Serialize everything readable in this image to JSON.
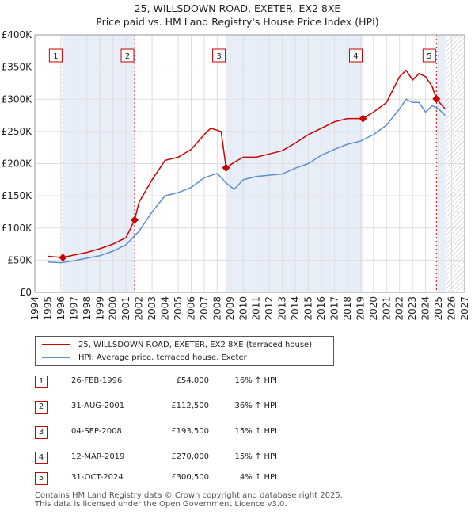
{
  "title_line1": "25, WILLSDOWN ROAD, EXETER, EX2 8XE",
  "title_line2": "Price paid vs. HM Land Registry's House Price Index (HPI)",
  "colors": {
    "property": "#cc0000",
    "hpi": "#5b8fcc",
    "shade": "#e8eef8",
    "marker": "#cc0000"
  },
  "chart_data": {
    "type": "line",
    "title": "25, WILLSDOWN ROAD, EXETER, EX2 8XE",
    "subtitle": "Price paid vs. HM Land Registry's House Price Index (HPI)",
    "xlabel": "",
    "ylabel": "",
    "xlim": [
      1994,
      2027
    ],
    "ylim": [
      0,
      400000
    ],
    "x_ticks": [
      1994,
      1995,
      1996,
      1997,
      1998,
      1999,
      2000,
      2001,
      2002,
      2003,
      2004,
      2005,
      2006,
      2007,
      2008,
      2009,
      2010,
      2011,
      2012,
      2013,
      2014,
      2015,
      2016,
      2017,
      2018,
      2019,
      2020,
      2021,
      2022,
      2023,
      2024,
      2025,
      2026,
      2027
    ],
    "y_ticks": [
      {
        "value": 0,
        "label": "£0"
      },
      {
        "value": 50000,
        "label": "£50K"
      },
      {
        "value": 100000,
        "label": "£100K"
      },
      {
        "value": 150000,
        "label": "£150K"
      },
      {
        "value": 200000,
        "label": "£200K"
      },
      {
        "value": 250000,
        "label": "£250K"
      },
      {
        "value": 300000,
        "label": "£300K"
      },
      {
        "value": 350000,
        "label": "£350K"
      },
      {
        "value": 400000,
        "label": "£400K"
      }
    ],
    "shaded_periods": [
      [
        1996.15,
        2001.66
      ],
      [
        2008.68,
        2019.19
      ],
      [
        2024.83,
        2025.5
      ]
    ],
    "hatched_after": 2025.5,
    "series": [
      {
        "name": "25, WILLSDOWN ROAD, EXETER, EX2 8XE (terraced house)",
        "color": "#cc0000",
        "x": [
          1995.0,
          1996.15,
          1997,
          1998,
          1999,
          2000,
          2001,
          2001.66,
          2002,
          2003,
          2004,
          2005,
          2006,
          2007,
          2007.5,
          2008.3,
          2008.68,
          2009.3,
          2010,
          2011,
          2012,
          2013,
          2014,
          2015,
          2016,
          2017,
          2018,
          2019.19,
          2020,
          2021,
          2022,
          2022.5,
          2023,
          2023.5,
          2024,
          2024.5,
          2024.83,
          2025.5
        ],
        "values": [
          56000,
          54000,
          58000,
          62000,
          68000,
          75000,
          85000,
          112500,
          140000,
          175000,
          205000,
          210000,
          222000,
          245000,
          255000,
          250000,
          193500,
          202000,
          210000,
          210000,
          215000,
          220000,
          232000,
          245000,
          255000,
          265000,
          270000,
          270000,
          280000,
          295000,
          335000,
          345000,
          330000,
          340000,
          335000,
          320000,
          300500,
          285000
        ]
      },
      {
        "name": "HPI: Average price, terraced house, Exeter",
        "color": "#5b8fcc",
        "x": [
          1995,
          1996,
          1997,
          1998,
          1999,
          2000,
          2001,
          2002,
          2003,
          2004,
          2005,
          2006,
          2007,
          2008,
          2008.68,
          2009.3,
          2010,
          2011,
          2012,
          2013,
          2014,
          2015,
          2016,
          2017,
          2018,
          2019,
          2020,
          2021,
          2022,
          2022.5,
          2023,
          2023.5,
          2024,
          2024.5,
          2025,
          2025.5
        ],
        "values": [
          47000,
          46000,
          49000,
          53000,
          57000,
          64000,
          74000,
          95000,
          125000,
          150000,
          155000,
          163000,
          178000,
          185000,
          170000,
          160000,
          175000,
          180000,
          182000,
          184000,
          193000,
          200000,
          213000,
          222000,
          230000,
          235000,
          245000,
          260000,
          285000,
          300000,
          295000,
          295000,
          280000,
          290000,
          285000,
          275000
        ]
      }
    ],
    "sales": [
      {
        "n": "1",
        "x": 1996.15,
        "y": 54000
      },
      {
        "n": "2",
        "x": 2001.66,
        "y": 112500
      },
      {
        "n": "3",
        "x": 2008.68,
        "y": 193500
      },
      {
        "n": "4",
        "x": 2019.19,
        "y": 270000
      },
      {
        "n": "5",
        "x": 2024.83,
        "y": 300500
      }
    ]
  },
  "legend": {
    "property_label": "25, WILLSDOWN ROAD, EXETER, EX2 8XE (terraced house)",
    "hpi_label": "HPI: Average price, terraced house, Exeter"
  },
  "transactions": [
    {
      "n": "1",
      "date": "26-FEB-1996",
      "price": "£54,000",
      "hpi": "16% ↑ HPI"
    },
    {
      "n": "2",
      "date": "31-AUG-2001",
      "price": "£112,500",
      "hpi": "36% ↑ HPI"
    },
    {
      "n": "3",
      "date": "04-SEP-2008",
      "price": "£193,500",
      "hpi": "15% ↑ HPI"
    },
    {
      "n": "4",
      "date": "12-MAR-2019",
      "price": "£270,000",
      "hpi": "15% ↑ HPI"
    },
    {
      "n": "5",
      "date": "31-OCT-2024",
      "price": "£300,500",
      "hpi": "4% ↑ HPI"
    }
  ],
  "footer_line1": "Contains HM Land Registry data © Crown copyright and database right 2025.",
  "footer_line2": "This data is licensed under the Open Government Licence v3.0."
}
